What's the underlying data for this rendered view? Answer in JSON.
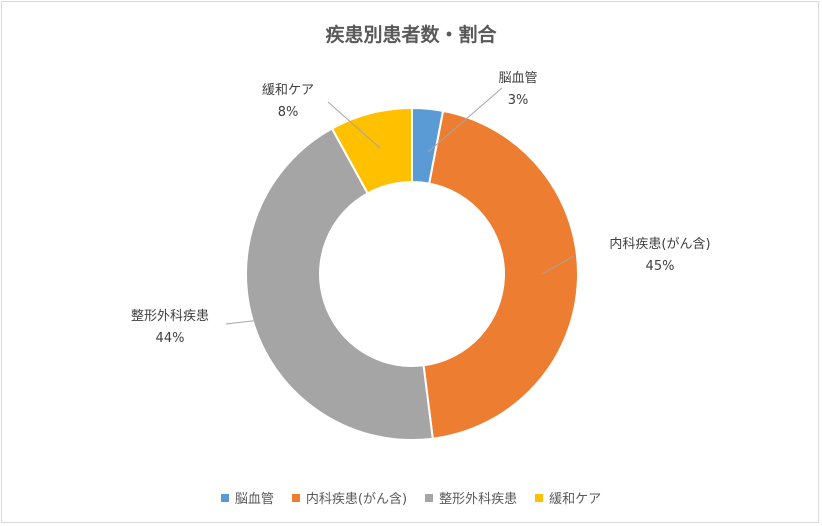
{
  "chart_data": {
    "type": "pie",
    "title": "疾患別患者数・割合",
    "categories": [
      "脳血管",
      "内科疾患(がん含)",
      "整形外科疾患",
      "緩和ケア"
    ],
    "values": [
      3,
      45,
      44,
      8
    ],
    "labels": [
      "3%",
      "45%",
      "44%",
      "8%"
    ],
    "colors": [
      "#5b9bd5",
      "#ed7d31",
      "#a5a5a5",
      "#ffc000"
    ],
    "donut": true,
    "legend_position": "bottom"
  }
}
